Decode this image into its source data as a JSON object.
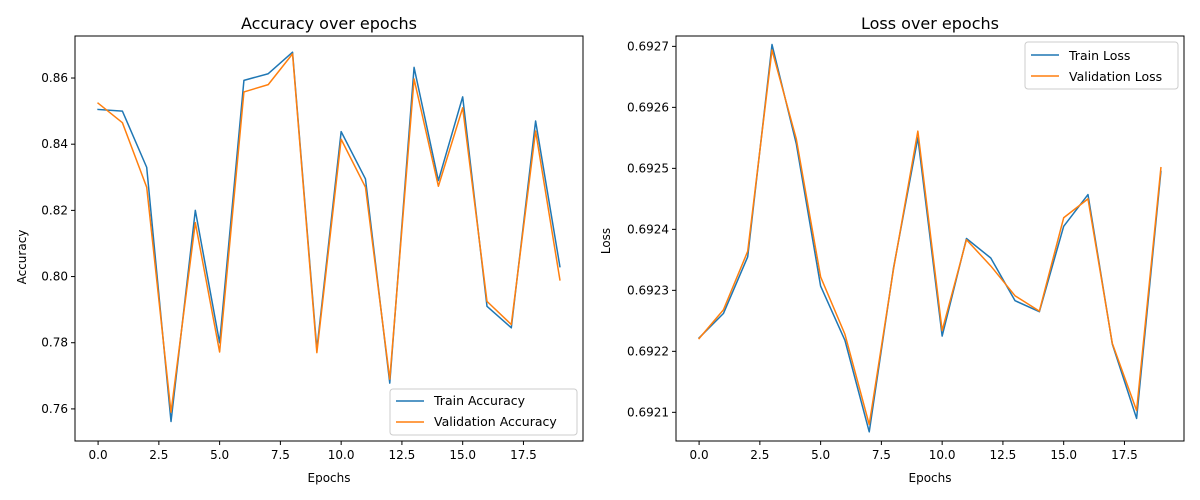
{
  "chart_data": [
    {
      "type": "line",
      "title": "Accuracy over epochs",
      "xlabel": "Epochs",
      "ylabel": "Accuracy",
      "xlim": [
        -0.95,
        19.95
      ],
      "ylim": [
        0.7503,
        0.8727
      ],
      "x_ticks": [
        0,
        2.5,
        5,
        7.5,
        10,
        12.5,
        15,
        17.5
      ],
      "x_tick_labels": [
        "0.0",
        "2.5",
        "5.0",
        "7.5",
        "10.0",
        "12.5",
        "15.0",
        "17.5"
      ],
      "y_ticks": [
        0.76,
        0.78,
        0.8,
        0.82,
        0.84,
        0.86
      ],
      "y_tick_labels": [
        "0.76",
        "0.78",
        "0.80",
        "0.82",
        "0.84",
        "0.86"
      ],
      "grid": false,
      "legend_position": "lower-right",
      "x": [
        0,
        1,
        2,
        3,
        4,
        5,
        6,
        7,
        8,
        9,
        10,
        11,
        12,
        13,
        14,
        15,
        16,
        17,
        18,
        19
      ],
      "series": [
        {
          "name": "Train Accuracy",
          "color": "#1f77b4",
          "values": [
            0.8505,
            0.85,
            0.833,
            0.7562,
            0.82,
            0.78,
            0.8593,
            0.8613,
            0.8678,
            0.778,
            0.8438,
            0.8295,
            0.7678,
            0.8632,
            0.829,
            0.8543,
            0.791,
            0.7845,
            0.847,
            0.803
          ]
        },
        {
          "name": "Validation Accuracy",
          "color": "#ff7f0e",
          "values": [
            0.8524,
            0.8465,
            0.827,
            0.759,
            0.8163,
            0.7772,
            0.8558,
            0.858,
            0.8673,
            0.777,
            0.8415,
            0.827,
            0.769,
            0.8597,
            0.8273,
            0.851,
            0.7925,
            0.7855,
            0.844,
            0.799
          ]
        }
      ]
    },
    {
      "type": "line",
      "title": "Loss over epochs",
      "xlabel": "Epochs",
      "ylabel": "Loss",
      "xlim": [
        -0.95,
        19.95
      ],
      "ylim": [
        0.692053,
        0.692717
      ],
      "x_ticks": [
        0,
        2.5,
        5,
        7.5,
        10,
        12.5,
        15,
        17.5
      ],
      "x_tick_labels": [
        "0.0",
        "2.5",
        "5.0",
        "7.5",
        "10.0",
        "12.5",
        "15.0",
        "17.5"
      ],
      "y_ticks": [
        0.6921,
        0.6922,
        0.6923,
        0.6924,
        0.6925,
        0.6926,
        0.6927
      ],
      "y_tick_labels": [
        "0.6921",
        "0.6922",
        "0.6923",
        "0.6924",
        "0.6925",
        "0.6926",
        "0.6927"
      ],
      "grid": false,
      "legend_position": "upper-right",
      "x": [
        0,
        1,
        2,
        3,
        4,
        5,
        6,
        7,
        8,
        9,
        10,
        11,
        12,
        13,
        14,
        15,
        16,
        17,
        18,
        19
      ],
      "series": [
        {
          "name": "Train Loss",
          "color": "#1f77b4",
          "values": [
            0.692222,
            0.692262,
            0.692355,
            0.692703,
            0.69254,
            0.692307,
            0.692218,
            0.692068,
            0.692337,
            0.69255,
            0.692225,
            0.692385,
            0.692353,
            0.692283,
            0.692265,
            0.692405,
            0.692457,
            0.692212,
            0.69209,
            0.692495
          ]
        },
        {
          "name": "Validation Loss",
          "color": "#ff7f0e",
          "values": [
            0.692221,
            0.692268,
            0.692364,
            0.692694,
            0.692548,
            0.692322,
            0.692228,
            0.69208,
            0.692335,
            0.692561,
            0.692234,
            0.692383,
            0.69234,
            0.692291,
            0.692266,
            0.692419,
            0.69245,
            0.692213,
            0.692103,
            0.692501
          ]
        }
      ]
    }
  ]
}
